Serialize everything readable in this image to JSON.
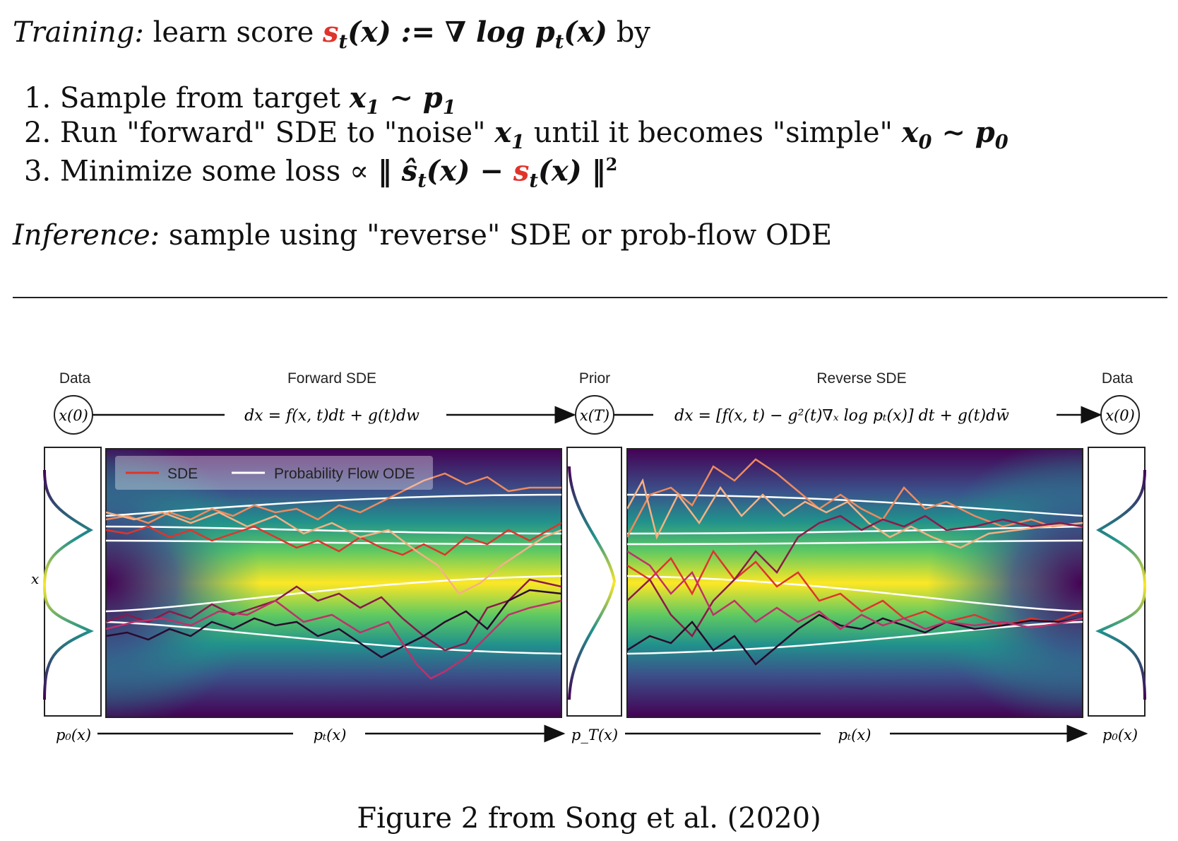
{
  "training": {
    "label": "Training:",
    "text_before": "learn score",
    "score": "s",
    "score_sub": "t",
    "score_arg": "(x) := ∇ log p",
    "p_sub": "t",
    "p_arg": "(x)",
    "text_after": "by"
  },
  "steps": [
    {
      "num": "1.",
      "text": "Sample from target",
      "math": "x",
      "math_sub": "1",
      "math2": " ∼ p",
      "math2_sub": "1"
    },
    {
      "num": "2.",
      "text": "Run \"forward\" SDE to \"noise\"",
      "math": "x",
      "math_sub": "1",
      "text2": "until it becomes \"simple\"",
      "math3": "x",
      "math3_sub": "0",
      "math4": " ∼ p",
      "math4_sub": "0"
    },
    {
      "num": "3.",
      "text": "Minimize some loss ∝",
      "loss_open": "‖ ŝ",
      "loss_sub": "t",
      "loss_mid": "(x) − ",
      "loss_s": "s",
      "loss_s_sub": "t",
      "loss_close": "(x) ‖",
      "loss_exp": "2"
    }
  ],
  "inference": {
    "label": "Inference:",
    "text": "sample using \"reverse\" SDE or prob-flow ODE"
  },
  "figure": {
    "labels": {
      "data_left": "Data",
      "forward": "Forward SDE",
      "prior": "Prior",
      "reverse": "Reverse SDE",
      "data_right": "Data",
      "x0_left": "x(0)",
      "xT": "x(T)",
      "x0_right": "x(0)",
      "forward_eq": "dx = f(x, t)dt + g(t)dw",
      "reverse_eq": "dx = [f(x, t) − g²(t)∇ₓ log pₜ(x)] dt + g(t)dw̄",
      "x_axis": "x",
      "p0_left": "p₀(x)",
      "pt_forward": "pₜ(x)",
      "pT": "p_T(x)",
      "pt_reverse": "pₜ(x)",
      "p0_right": "p₀(x)"
    },
    "legend": {
      "sde": "SDE",
      "ode": "Probability Flow ODE"
    },
    "colors": {
      "sde_line": "#e0342b",
      "ode_line": "#ffffff",
      "bg_low": "#440154",
      "bg_mid": "#21918c",
      "bg_high": "#fde725"
    }
  },
  "caption": "Figure 2 from Song et al. (2020)"
}
